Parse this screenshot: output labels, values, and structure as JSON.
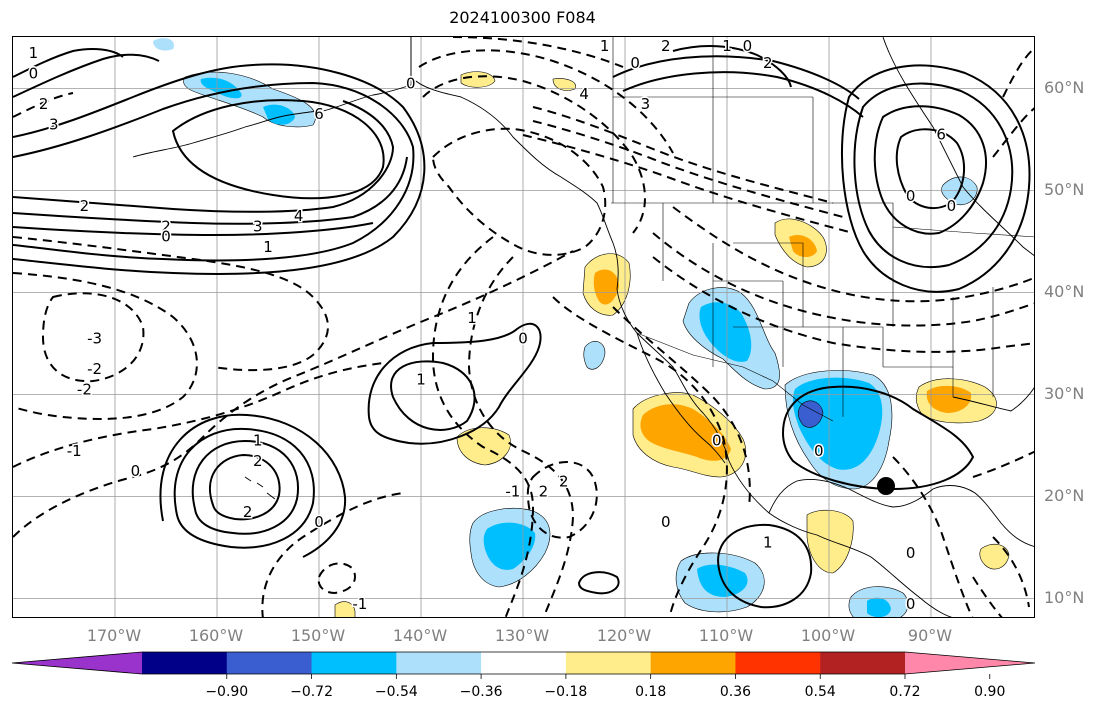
{
  "title": "2024100300 F084",
  "lat_labels": [
    {
      "text": "60°N",
      "lat": 60
    },
    {
      "text": "50°N",
      "lat": 50
    },
    {
      "text": "40°N",
      "lat": 40
    },
    {
      "text": "30°N",
      "lat": 30
    },
    {
      "text": "20°N",
      "lat": 20
    },
    {
      "text": "10°N",
      "lat": 10
    }
  ],
  "lon_labels": [
    {
      "text": "170°W",
      "lon": -170
    },
    {
      "text": "160°W",
      "lon": -160
    },
    {
      "text": "150°W",
      "lon": -150
    },
    {
      "text": "140°W",
      "lon": -140
    },
    {
      "text": "130°W",
      "lon": -130
    },
    {
      "text": "120°W",
      "lon": -120
    },
    {
      "text": "110°W",
      "lon": -110
    },
    {
      "text": "100°W",
      "lon": -100
    },
    {
      "text": "90°W",
      "lon": -90
    }
  ],
  "colorbar": {
    "ticks": [
      "−0.90",
      "−0.72",
      "−0.54",
      "−0.36",
      "−0.18",
      "0.18",
      "0.36",
      "0.54",
      "0.72",
      "0.90"
    ],
    "colors": [
      "#9933cc",
      "#000088",
      "#3a5ecf",
      "#00bfff",
      "#ade0fb",
      "#ffffff",
      "#ffec8b",
      "#ffa500",
      "#ff3300",
      "#b22222",
      "#ff88aa"
    ]
  },
  "contour_labels": [
    {
      "text": "1",
      "lon": -178,
      "lat": 63
    },
    {
      "text": "0",
      "lon": -178,
      "lat": 61
    },
    {
      "text": "2",
      "lon": -177,
      "lat": 58
    },
    {
      "text": "3",
      "lon": -176,
      "lat": 56
    },
    {
      "text": "6",
      "lon": -150,
      "lat": 57
    },
    {
      "text": "0",
      "lon": -141,
      "lat": 60
    },
    {
      "text": "2",
      "lon": -173,
      "lat": 48
    },
    {
      "text": "2",
      "lon": -165,
      "lat": 46
    },
    {
      "text": "3",
      "lon": -156,
      "lat": 46
    },
    {
      "text": "4",
      "lon": -152,
      "lat": 47
    },
    {
      "text": "1",
      "lon": -155,
      "lat": 44
    },
    {
      "text": "0",
      "lon": -165,
      "lat": 45
    },
    {
      "text": "-3",
      "lon": -172,
      "lat": 35
    },
    {
      "text": "-2",
      "lon": -172,
      "lat": 32
    },
    {
      "text": "-2",
      "lon": -173,
      "lat": 30
    },
    {
      "text": "-1",
      "lon": -174,
      "lat": 24
    },
    {
      "text": "0",
      "lon": -168,
      "lat": 22
    },
    {
      "text": "1",
      "lon": -156,
      "lat": 25
    },
    {
      "text": "2",
      "lon": -156,
      "lat": 23
    },
    {
      "text": "2",
      "lon": -157,
      "lat": 18
    },
    {
      "text": "0",
      "lon": -150,
      "lat": 17
    },
    {
      "text": "1",
      "lon": -135,
      "lat": 37
    },
    {
      "text": "1",
      "lon": -140,
      "lat": 31
    },
    {
      "text": "0",
      "lon": -130,
      "lat": 35
    },
    {
      "text": "-1",
      "lon": -131,
      "lat": 20
    },
    {
      "text": "2",
      "lon": -128,
      "lat": 20
    },
    {
      "text": "2",
      "lon": -126,
      "lat": 21
    },
    {
      "text": "-1",
      "lon": -146,
      "lat": 9
    },
    {
      "text": "1",
      "lon": -122,
      "lat": 64
    },
    {
      "text": "0",
      "lon": -119,
      "lat": 62
    },
    {
      "text": "4",
      "lon": -124,
      "lat": 59
    },
    {
      "text": "3",
      "lon": -118,
      "lat": 58
    },
    {
      "text": "2",
      "lon": -116,
      "lat": 64
    },
    {
      "text": "1",
      "lon": -110,
      "lat": 65
    },
    {
      "text": "0",
      "lon": -108,
      "lat": 66
    },
    {
      "text": "2",
      "lon": -106,
      "lat": 62
    },
    {
      "text": "6",
      "lon": -89,
      "lat": 55
    },
    {
      "text": "0",
      "lon": -92,
      "lat": 49
    },
    {
      "text": "0",
      "lon": -88,
      "lat": 48
    },
    {
      "text": "0",
      "lon": -111,
      "lat": 25
    },
    {
      "text": "0",
      "lon": -116,
      "lat": 17
    },
    {
      "text": "1",
      "lon": -106,
      "lat": 15
    },
    {
      "text": "0",
      "lon": -101,
      "lat": 24
    },
    {
      "text": "0",
      "lon": -92,
      "lat": 14
    },
    {
      "text": "0",
      "lon": -92,
      "lat": 9
    }
  ]
}
